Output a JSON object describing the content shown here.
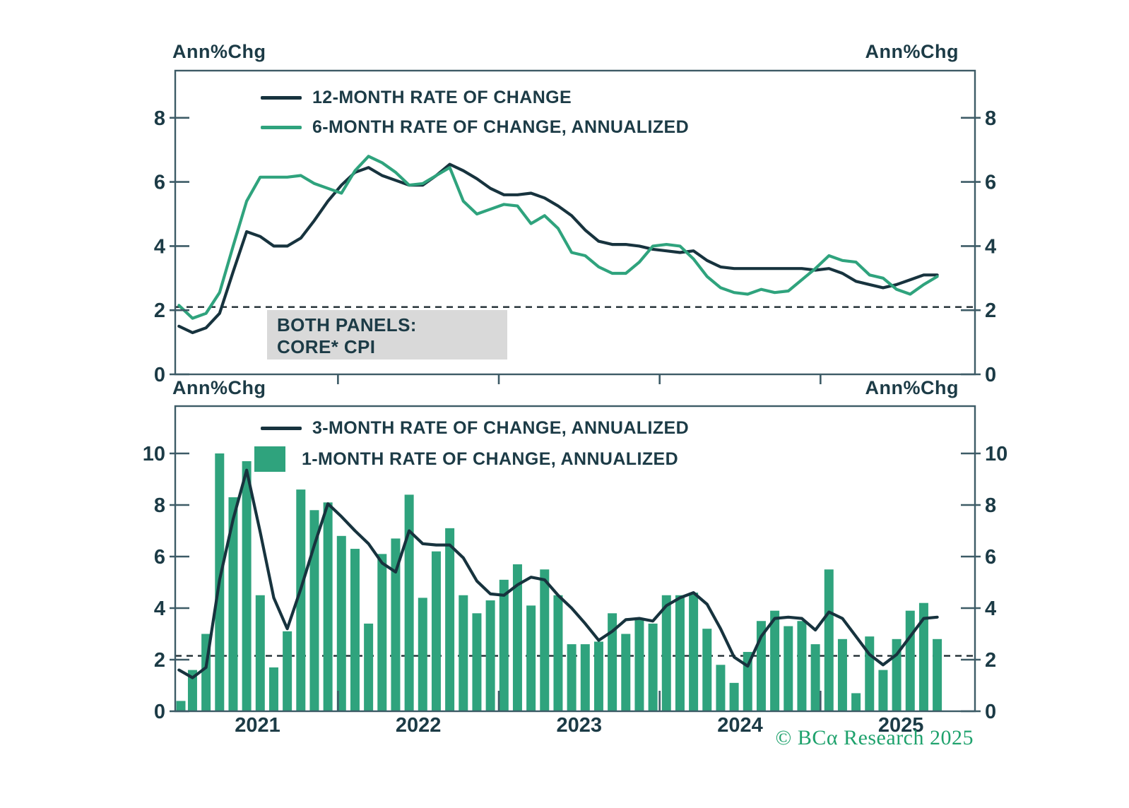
{
  "labels": {
    "top_left_unit": "Ann%Chg",
    "top_right_unit": "Ann%Chg",
    "bottom_left_unit": "Ann%Chg",
    "bottom_right_unit": "Ann%Chg"
  },
  "annotation": {
    "line1": "BOTH PANELS:",
    "line2": "CORE* CPI"
  },
  "footer": {
    "text": "© BCα Research 2025"
  },
  "colors": {
    "dark_line": "#17333E",
    "green_line": "#2FA37D",
    "bar_green": "#2FA37D",
    "axis": "#3D5B66",
    "text": "#1C3B46",
    "dashed": "#1E2B31",
    "annotation_bg": "#D9D9D9",
    "footer_green": "#1FA26D"
  },
  "chart_data": [
    {
      "type": "line",
      "panel": "top",
      "x": {
        "start": "2021-01",
        "end": "2025-09",
        "frequency": "monthly",
        "n": 57
      },
      "x_tick_labels": [
        "2021",
        "2022",
        "2023",
        "2024",
        "2025"
      ],
      "ylabel": "Ann%Chg",
      "ylim": [
        0,
        9.5
      ],
      "yticks": [
        0,
        2,
        4,
        6,
        8
      ],
      "grid": false,
      "dashed_reference_y": 2.1,
      "legend_position": "inside-top-left",
      "series": [
        {
          "name": "12-MONTH RATE OF CHANGE",
          "type": "line",
          "color": "#17333E",
          "values": [
            1.5,
            1.3,
            1.45,
            1.9,
            3.2,
            4.45,
            4.3,
            4.0,
            4.0,
            4.25,
            4.8,
            5.4,
            5.9,
            6.3,
            6.45,
            6.2,
            6.05,
            5.9,
            5.9,
            6.2,
            6.55,
            6.35,
            6.1,
            5.8,
            5.6,
            5.6,
            5.65,
            5.5,
            5.25,
            4.95,
            4.5,
            4.15,
            4.05,
            4.05,
            4.0,
            3.9,
            3.85,
            3.8,
            3.85,
            3.55,
            3.35,
            3.3,
            3.3,
            3.3,
            3.3,
            3.3,
            3.3,
            3.25,
            3.3,
            3.15,
            2.9,
            2.8,
            2.7,
            2.8,
            2.95,
            3.1,
            3.1
          ]
        },
        {
          "name": "6-MONTH RATE OF CHANGE, ANNUALIZED",
          "type": "line",
          "color": "#2FA37D",
          "values": [
            2.15,
            1.75,
            1.9,
            2.55,
            4.0,
            5.4,
            6.15,
            6.15,
            6.15,
            6.2,
            5.95,
            5.8,
            5.65,
            6.35,
            6.8,
            6.6,
            6.3,
            5.9,
            5.95,
            6.2,
            6.45,
            5.4,
            5.0,
            5.15,
            5.3,
            5.25,
            4.7,
            4.95,
            4.55,
            3.8,
            3.7,
            3.35,
            3.15,
            3.15,
            3.5,
            4.0,
            4.05,
            4.0,
            3.6,
            3.05,
            2.7,
            2.55,
            2.5,
            2.65,
            2.55,
            2.6,
            2.95,
            3.3,
            3.7,
            3.55,
            3.5,
            3.1,
            3.0,
            2.65,
            2.5,
            2.8,
            3.05
          ]
        }
      ]
    },
    {
      "type": "bar",
      "panel": "bottom",
      "x": {
        "start": "2021-01",
        "end": "2025-09",
        "frequency": "monthly",
        "n": 57
      },
      "x_tick_labels": [
        "2021",
        "2022",
        "2023",
        "2024",
        "2025"
      ],
      "ylabel": "Ann%Chg",
      "ylim": [
        0,
        11.8
      ],
      "yticks": [
        0,
        2,
        4,
        6,
        8,
        10
      ],
      "grid": false,
      "dashed_reference_y": 2.15,
      "legend_position": "inside-top-left",
      "series": [
        {
          "name": "3-MONTH RATE OF CHANGE, ANNUALIZED",
          "type": "line",
          "color": "#17333E",
          "values": [
            1.6,
            1.3,
            1.7,
            5.1,
            7.45,
            9.35,
            6.95,
            4.4,
            3.2,
            4.75,
            6.45,
            8.05,
            7.55,
            7.0,
            6.5,
            5.75,
            5.4,
            7.0,
            6.5,
            6.45,
            6.45,
            5.95,
            5.05,
            4.55,
            4.5,
            4.9,
            5.2,
            5.1,
            4.5,
            4.0,
            3.4,
            2.75,
            3.1,
            3.55,
            3.6,
            3.5,
            4.1,
            4.4,
            4.6,
            4.15,
            3.2,
            2.1,
            1.75,
            2.9,
            3.6,
            3.65,
            3.6,
            3.15,
            3.85,
            3.6,
            2.9,
            2.2,
            1.8,
            2.2,
            2.9,
            3.6,
            3.65
          ]
        },
        {
          "name": "1-MONTH RATE OF CHANGE, ANNUALIZED",
          "type": "bar",
          "color": "#2FA37D",
          "values": [
            0.4,
            1.6,
            3.0,
            10.0,
            8.3,
            9.7,
            4.5,
            1.7,
            3.1,
            8.6,
            7.8,
            8.1,
            6.8,
            6.3,
            3.4,
            6.1,
            6.7,
            8.4,
            4.4,
            6.2,
            7.1,
            4.5,
            3.8,
            4.3,
            5.1,
            5.7,
            4.1,
            5.5,
            4.5,
            2.6,
            2.6,
            2.7,
            3.8,
            3.0,
            3.6,
            3.4,
            4.5,
            4.5,
            4.6,
            3.2,
            1.8,
            1.1,
            2.3,
            3.5,
            3.9,
            3.3,
            3.5,
            2.6,
            5.5,
            2.8,
            0.7,
            2.9,
            1.6,
            2.8,
            3.9,
            4.2,
            2.8
          ]
        }
      ]
    }
  ]
}
